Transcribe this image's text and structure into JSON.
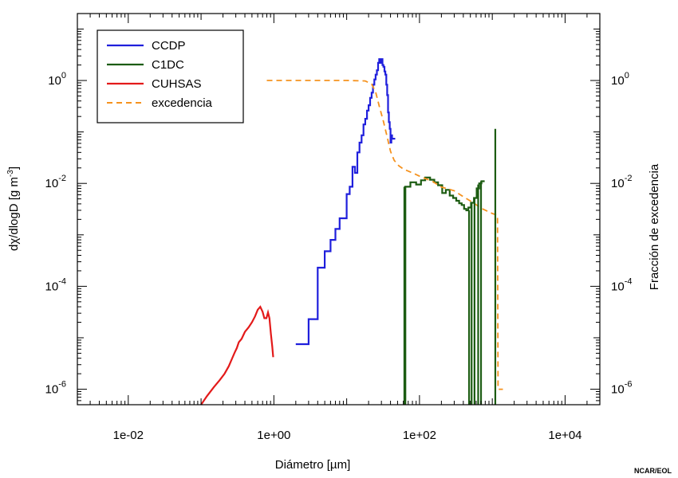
{
  "chart_data": {
    "type": "line",
    "xlabel": "Diámetro [µm]",
    "ylabel_left": "dχ/dlogD [g m^-3]",
    "ylabel_right": "Fracción de excedencia",
    "credit": "NCAR/EOL",
    "x_scale": "log",
    "y_scale": "log",
    "xlim": [
      0.002,
      30000
    ],
    "ylim": [
      5e-07,
      20
    ],
    "x_ticks": [
      {
        "value": 0.01,
        "label": "1e-02"
      },
      {
        "value": 1,
        "label": "1e+00"
      },
      {
        "value": 100,
        "label": "1e+02"
      },
      {
        "value": 10000,
        "label": "1e+04"
      }
    ],
    "y_ticks_left": [
      {
        "value": 1,
        "base": "10",
        "exp": "0"
      },
      {
        "value": 0.01,
        "base": "10",
        "exp": "-2"
      },
      {
        "value": 0.0001,
        "base": "10",
        "exp": "-4"
      },
      {
        "value": 1e-06,
        "base": "10",
        "exp": "-6"
      }
    ],
    "y_ticks_right": [
      {
        "value": 1,
        "base": "10",
        "exp": "0"
      },
      {
        "value": 0.01,
        "base": "10",
        "exp": "-2"
      },
      {
        "value": 0.0001,
        "base": "10",
        "exp": "-4"
      },
      {
        "value": 1e-06,
        "base": "10",
        "exp": "-6"
      }
    ],
    "legend_position": "top-left",
    "series": [
      {
        "name": "CCDP",
        "color": "#1f1fdc",
        "style": "step",
        "points": [
          [
            2.0,
            7.5e-06
          ],
          [
            3.0,
            2.3e-05
          ],
          [
            4.0,
            0.00023
          ],
          [
            5.0,
            0.00048
          ],
          [
            6.0,
            0.0008
          ],
          [
            7.0,
            0.0013
          ],
          [
            8.0,
            0.0021
          ],
          [
            9.0,
            0.0021
          ],
          [
            10.0,
            0.0062
          ],
          [
            11.0,
            0.0086
          ],
          [
            12.0,
            0.021
          ],
          [
            13.0,
            0.016
          ],
          [
            14.0,
            0.04
          ],
          [
            15.0,
            0.062
          ],
          [
            16.0,
            0.086
          ],
          [
            17.0,
            0.14
          ],
          [
            18.0,
            0.18
          ],
          [
            19.0,
            0.26
          ],
          [
            20.0,
            0.33
          ],
          [
            21.0,
            0.46
          ],
          [
            22.0,
            0.58
          ],
          [
            23.0,
            0.83
          ],
          [
            24.0,
            1.05
          ],
          [
            25.0,
            1.3
          ],
          [
            26.0,
            1.58
          ],
          [
            27.0,
            2.2
          ],
          [
            28.0,
            2.6
          ],
          [
            29.0,
            2.2
          ],
          [
            30.0,
            2.6
          ],
          [
            31.0,
            2.0
          ],
          [
            32.0,
            1.85
          ],
          [
            33.0,
            1.5
          ],
          [
            34.0,
            1.3
          ],
          [
            35.0,
            0.83
          ],
          [
            36.0,
            0.52
          ],
          [
            37.0,
            0.24
          ],
          [
            38.0,
            0.155
          ],
          [
            39.0,
            0.115
          ],
          [
            40.0,
            0.062
          ],
          [
            41.0,
            0.086
          ],
          [
            42.0,
            0.074
          ]
        ]
      },
      {
        "name": "C1DC",
        "color": "#1c5c12",
        "style": "step",
        "points": [
          [
            62,
            0.0086
          ],
          [
            75,
            0.0105
          ],
          [
            90,
            0.0095
          ],
          [
            105,
            0.0115
          ],
          [
            120,
            0.013
          ],
          [
            140,
            0.0118
          ],
          [
            160,
            0.0105
          ],
          [
            180,
            0.0092
          ],
          [
            205,
            0.0065
          ],
          [
            230,
            0.0075
          ],
          [
            260,
            0.0058
          ],
          [
            290,
            0.0052
          ],
          [
            320,
            0.0046
          ],
          [
            350,
            0.0041
          ],
          [
            380,
            0.0038
          ],
          [
            410,
            0.0032
          ],
          [
            440,
            0.003
          ],
          [
            470,
            0.0034
          ],
          [
            510,
            0.0042
          ],
          [
            560,
            0.0052
          ],
          [
            610,
            0.008
          ],
          [
            660,
            0.01
          ],
          [
            710,
            0.011
          ]
        ]
      },
      {
        "name": "CUHSAS",
        "color": "#e31a1a",
        "style": "line",
        "points": [
          [
            0.1,
            5e-07
          ],
          [
            0.12,
            7.3e-07
          ],
          [
            0.15,
            1.1e-06
          ],
          [
            0.18,
            1.5e-06
          ],
          [
            0.21,
            2e-06
          ],
          [
            0.24,
            2.8e-06
          ],
          [
            0.27,
            4.1e-06
          ],
          [
            0.29,
            5.2e-06
          ],
          [
            0.31,
            6.3e-06
          ],
          [
            0.33,
            8.2e-06
          ],
          [
            0.36,
            9.5e-06
          ],
          [
            0.4,
            1.3e-05
          ],
          [
            0.45,
            1.6e-05
          ],
          [
            0.5,
            2e-05
          ],
          [
            0.55,
            2.6e-05
          ],
          [
            0.6,
            3.5e-05
          ],
          [
            0.65,
            4e-05
          ],
          [
            0.7,
            3.2e-05
          ],
          [
            0.74,
            2.4e-05
          ],
          [
            0.79,
            2.4e-05
          ],
          [
            0.83,
            3.1e-05
          ],
          [
            0.87,
            2.4e-05
          ],
          [
            0.91,
            1.2e-05
          ],
          [
            0.95,
            6.8e-06
          ],
          [
            0.98,
            4.2e-06
          ]
        ]
      },
      {
        "name": "excedencia",
        "color": "#f5921e",
        "style": "dashed",
        "points": [
          [
            0.8,
            1.0
          ],
          [
            10,
            1.0
          ],
          [
            18,
            0.98
          ],
          [
            22,
            0.85
          ],
          [
            25,
            0.6
          ],
          [
            28,
            0.32
          ],
          [
            32,
            0.16
          ],
          [
            36,
            0.08
          ],
          [
            40,
            0.042
          ],
          [
            45,
            0.028
          ],
          [
            52,
            0.022
          ],
          [
            60,
            0.019
          ],
          [
            80,
            0.016
          ],
          [
            110,
            0.013
          ],
          [
            150,
            0.011
          ],
          [
            200,
            0.0085
          ],
          [
            300,
            0.0072
          ],
          [
            400,
            0.0055
          ],
          [
            550,
            0.0042
          ],
          [
            700,
            0.0033
          ],
          [
            1000,
            0.0026
          ],
          [
            1180,
            0.0024
          ],
          [
            1200,
            1e-06
          ],
          [
            1400,
            1e-06
          ]
        ]
      }
    ],
    "spikes": {
      "color": "#1c5c12",
      "floor": 5e-07,
      "items": [
        [
          64,
          0.0086
        ],
        [
          480,
          0.003
        ],
        [
          520,
          0.0042
        ],
        [
          570,
          0.0052
        ],
        [
          640,
          0.0095
        ],
        [
          700,
          0.011
        ],
        [
          1100,
          0.115
        ]
      ]
    }
  }
}
